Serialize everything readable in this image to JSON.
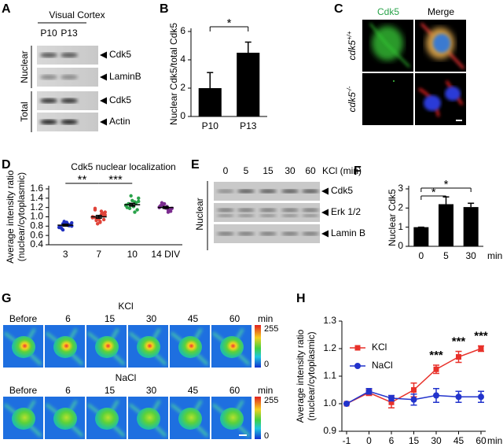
{
  "panels": {
    "A": {
      "letter": "A",
      "title": "Visual Cortex",
      "columns": [
        "P10",
        "P13"
      ],
      "bands": [
        "Cdk5",
        "LaminB",
        "Cdk5",
        "Actin"
      ],
      "groups": [
        "Nuclear",
        "Total"
      ]
    },
    "C": {
      "letter": "C",
      "columns": [
        "Cdk5",
        "Merge"
      ],
      "rows": [
        {
          "gene": "cdk5",
          "genotype": "+/+"
        },
        {
          "gene": "cdk5",
          "genotype": "-/-"
        }
      ]
    },
    "E": {
      "letter": "E",
      "header": "KCl (min)",
      "times": [
        "0",
        "5",
        "15",
        "30",
        "60"
      ],
      "bands": [
        "Cdk5",
        "Erk 1/2",
        "Lamin B"
      ],
      "group": "Nuclear"
    },
    "G": {
      "letter": "G",
      "conditions": [
        {
          "name": "KCl",
          "times": [
            "Before",
            "6",
            "15",
            "30",
            "45",
            "60"
          ]
        },
        {
          "name": "NaCl",
          "times": [
            "Before",
            "6",
            "15",
            "30",
            "45",
            "60"
          ]
        }
      ],
      "unit": "min",
      "colorbar": [
        "255",
        "0"
      ]
    }
  },
  "chart_data": [
    {
      "type": "bar",
      "letter": "B",
      "ylabel": [
        "Nuclear Cdk5/total Cdk5"
      ],
      "categories": [
        "P10",
        "P13"
      ],
      "values": [
        2.0,
        4.5
      ],
      "errors": [
        1.1,
        0.75
      ],
      "color": "#000000",
      "ylim": [
        0,
        6
      ],
      "yticks": [
        0,
        2,
        4,
        6
      ],
      "significance": [
        "*"
      ]
    },
    {
      "type": "dot",
      "letter": "D",
      "title": "Cdk5 nuclear localization",
      "ylabel": [
        "Average intensity ratio",
        "(nuclear/cytoplasmic)"
      ],
      "categories": [
        "3",
        "7",
        "10",
        "14 DIV"
      ],
      "colors": [
        "#1f2fbf",
        "#e0443a",
        "#2aa34a",
        "#7b2c8f"
      ],
      "points": [
        [
          0.78,
          0.82,
          0.85,
          0.8,
          0.88,
          0.75,
          0.83,
          0.86,
          0.79,
          0.81,
          0.9,
          0.77,
          0.84,
          0.72,
          0.87,
          0.83
        ],
        [
          0.98,
          1.05,
          0.92,
          1.1,
          0.88,
          1.15,
          1.02,
          0.95,
          0.99,
          1.08,
          0.85,
          1.0,
          1.12,
          0.96,
          1.04,
          0.9,
          1.18,
          0.94
        ],
        [
          1.25,
          1.32,
          1.18,
          1.4,
          1.22,
          1.28,
          1.15,
          1.35,
          1.2,
          1.3,
          1.45,
          1.24,
          1.1,
          1.27,
          1.33
        ],
        [
          1.2,
          1.15,
          1.25,
          1.18,
          1.22,
          1.3,
          1.12,
          1.19,
          1.24,
          1.16,
          1.28,
          1.21,
          1.1
        ]
      ],
      "values": [
        0.82,
        1.0,
        1.26,
        1.2
      ],
      "errors": [
        0.02,
        0.03,
        0.03,
        0.02
      ],
      "ylim": [
        0.4,
        1.6
      ],
      "yticks": [
        0.4,
        0.6,
        0.8,
        {
          "value": 1,
          "label": "1.0"
        },
        1.2,
        1.4,
        1.6
      ],
      "significance": [
        "**",
        "***"
      ]
    },
    {
      "type": "bar",
      "letter": "F",
      "ylabel": [
        "Nuclear Cdk5"
      ],
      "xlabel": "min",
      "categories": [
        "0",
        "5",
        "30"
      ],
      "values": [
        1,
        2.2,
        2.05
      ],
      "errors": [
        0,
        0.38,
        0.2
      ],
      "color": "#000000",
      "ylim": [
        0,
        3
      ],
      "yticks": [
        0,
        1,
        2,
        3
      ],
      "significance": [
        "*",
        "*"
      ]
    },
    {
      "type": "line",
      "letter": "H",
      "ylabel": [
        "Average intensity ratio",
        "(nuclear/cytoplasmic)"
      ],
      "xlabel": "min",
      "categories": [
        "-1",
        "0",
        "6",
        "15",
        "30",
        "45",
        "60"
      ],
      "series": [
        {
          "name": "KCl",
          "color": "#e8312a",
          "values": [
            1.0,
            1.04,
            1.005,
            1.05,
            1.125,
            1.17,
            1.2
          ],
          "errors": [
            0,
            0.01,
            0.02,
            0.025,
            0.015,
            0.02,
            0.01
          ]
        },
        {
          "name": "NaCl",
          "color": "#2233cc",
          "values": [
            1.0,
            1.045,
            1.02,
            1.015,
            1.03,
            1.025,
            1.025
          ],
          "errors": [
            0,
            0.01,
            0.01,
            0.02,
            0.025,
            0.02,
            0.02
          ]
        }
      ],
      "ylim": [
        0.9,
        1.3
      ],
      "yticks": [
        0.9,
        {
          "value": 1,
          "label": "1.0"
        },
        1.1,
        1.2,
        {
          "value": 1.3,
          "label": "1.3"
        }
      ],
      "legend": "upper-left",
      "significance": [
        "***",
        "***",
        "***"
      ]
    }
  ]
}
